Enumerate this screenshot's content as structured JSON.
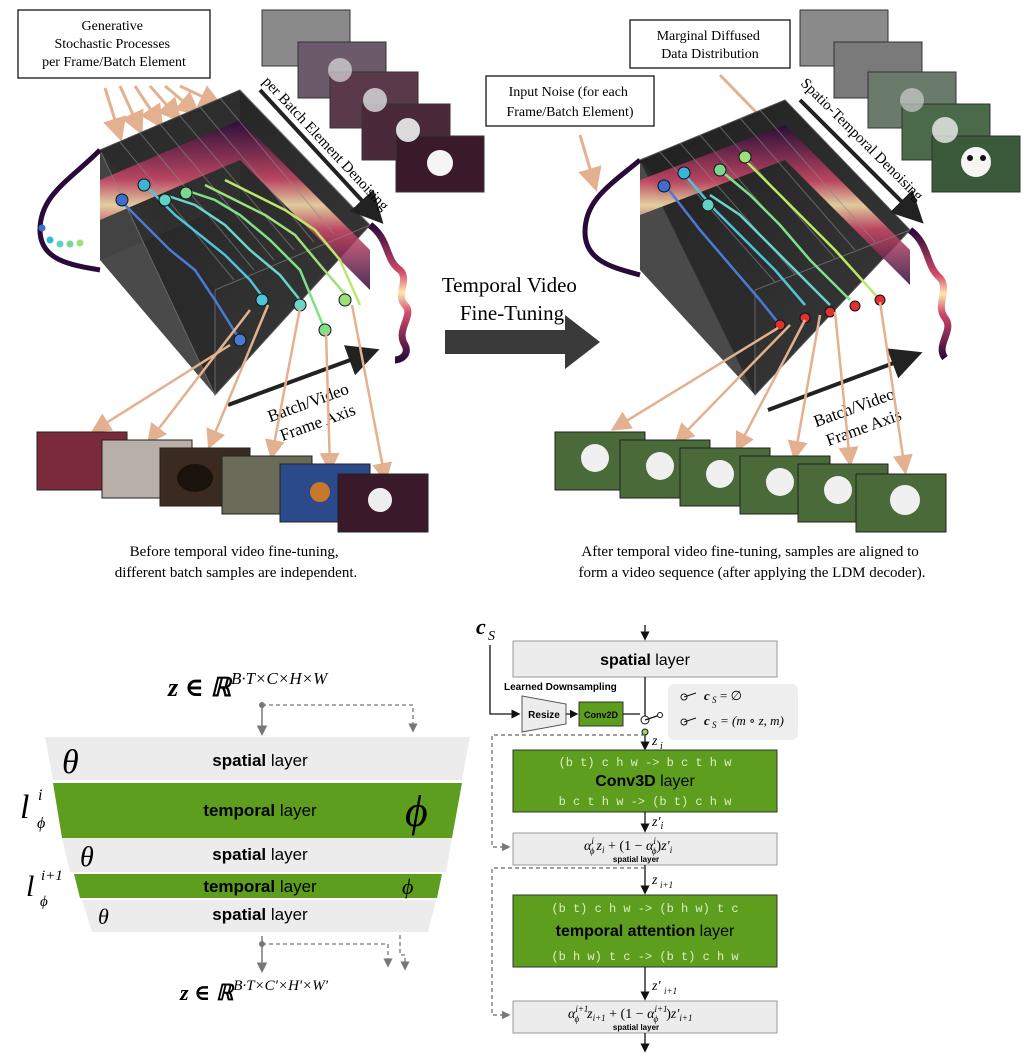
{
  "top": {
    "left_callout": "Generative\nStochastic Processes\nper Frame/Batch Element",
    "left_denoise": "per Batch Element Denoising",
    "left_axis": "Batch/Video\nFrame Axis",
    "left_caption": "Before temporal video fine-tuning,\ndifferent batch samples are independent.",
    "middle_label": "Temporal Video\nFine-Tuning",
    "right_callout_marginal": "Marginal Diffused\nData Distribution",
    "right_callout_noise": "Input Noise (for each\nFrame/Batch Element)",
    "right_denoise": "Spatio-Temporal Denoising",
    "right_axis": "Batch/Video\nFrame Axis",
    "right_caption": "After temporal video fine-tuning, samples are aligned to\nform a video sequence (after applying the LDM decoder)."
  },
  "bottom_left": {
    "input_z": "z ∈ ℝ",
    "input_exp": "B·T×C×H×W",
    "output_z": "z ∈ ℝ",
    "output_exp": "B·T×C′×H′×W′",
    "layers": [
      {
        "kind": "spatial",
        "bold": "spatial",
        "rest": " layer",
        "left_sym": "θ",
        "right_sym": ""
      },
      {
        "kind": "temporal",
        "bold": "temporal",
        "rest": " layer",
        "left_sym": "",
        "right_sym": "ϕ"
      },
      {
        "kind": "spatial",
        "bold": "spatial",
        "rest": " layer",
        "left_sym": "θ",
        "right_sym": ""
      },
      {
        "kind": "temporal",
        "bold": "temporal",
        "rest": " layer",
        "left_sym": "",
        "right_sym": "ϕ"
      },
      {
        "kind": "spatial",
        "bold": "spatial",
        "rest": " layer",
        "left_sym": "θ",
        "right_sym": ""
      }
    ],
    "l_phi_i": "l",
    "l_phi_i_sup": "i",
    "l_phi_i_sub": "ϕ",
    "l_phi_i1_sup": "i+1",
    "l_phi_i1_sub": "ϕ"
  },
  "bottom_right": {
    "cs_label": "c",
    "cs_sub": "S",
    "top_spatial_bold": "spatial",
    "top_spatial_rest": " layer",
    "learned_downsampling": "Learned Downsampling",
    "resize": "Resize",
    "conv2d": "Conv2D",
    "opt1": "c",
    "opt1_rest": " = ∅",
    "opt2": "c",
    "opt2_rest": " = (m ∘ z, m)",
    "opt_sub": "S",
    "z_i": "z",
    "z_i_sub": "i",
    "conv3d_top": "(b t) c h w -> b c t h w",
    "conv3d_bold": "Conv3D",
    "conv3d_rest": " layer",
    "conv3d_bottom": "b c t h w -> (b t) c h w",
    "z_prime_i": "z′",
    "mix1": "α",
    "mix1_formula": "z  + (1 − α ) z′",
    "mix_small": "spatial layer",
    "z_i1": "z",
    "z_i1_sub": "i+1",
    "attn_top": "(b t) c h w -> (b h w) t c",
    "attn_bold": "temporal attention",
    "attn_rest": " layer",
    "attn_bottom": "(b h w) t c -> (b t) c h w",
    "z_prime_i1": "z′",
    "z_prime_i1_sub": "i+1",
    "mix2_small": "spatial layer",
    "phi": "ϕ",
    "sup_i": "i",
    "sup_i1": "i+1",
    "sub_i": "i",
    "sub_i1": "i+1"
  },
  "colors": {
    "green": "#5e9e1e",
    "gray_layer": "#ececec",
    "arrow_peach": "#e3b18f",
    "dark_arrow": "#3a3a3a"
  }
}
